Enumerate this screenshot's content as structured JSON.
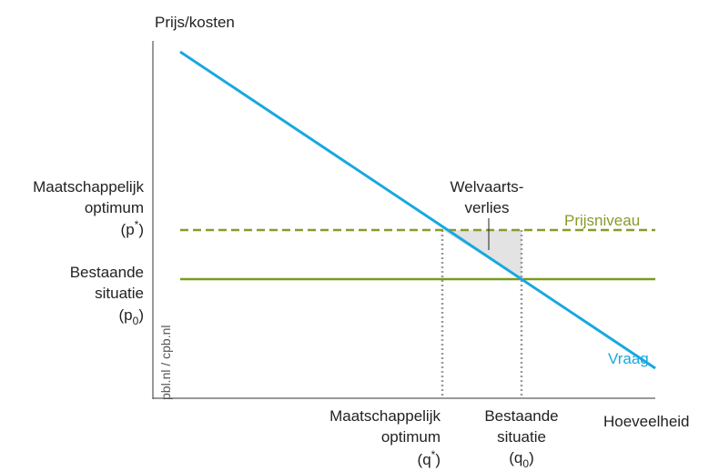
{
  "axes": {
    "y_label": "Prijs/kosten",
    "x_label": "Hoeveelheid",
    "source": "pbl.nl / cpb.nl"
  },
  "y_labels": {
    "optimum": {
      "lines": [
        "Maatschappelijk",
        "optimum"
      ],
      "symbol": {
        "base": "(p",
        "mod": "*",
        "close": ")"
      }
    },
    "current": {
      "lines": [
        "Bestaande",
        "situatie"
      ],
      "symbol": {
        "base": "(p",
        "mod": "0",
        "close": ")"
      }
    }
  },
  "x_labels": {
    "optimum": {
      "lines": [
        "Maatschappelijk",
        "optimum"
      ],
      "symbol": {
        "base": "(q",
        "mod": "*",
        "close": ")"
      }
    },
    "current": {
      "lines": [
        "Bestaande",
        "situatie"
      ],
      "symbol": {
        "base": "(q",
        "mod": "0",
        "close": ")"
      }
    }
  },
  "curves": {
    "demand": "Vraag",
    "price_level": "Prijsniveau"
  },
  "area": {
    "lines": [
      "Welvaarts-",
      "verlies"
    ]
  }
}
